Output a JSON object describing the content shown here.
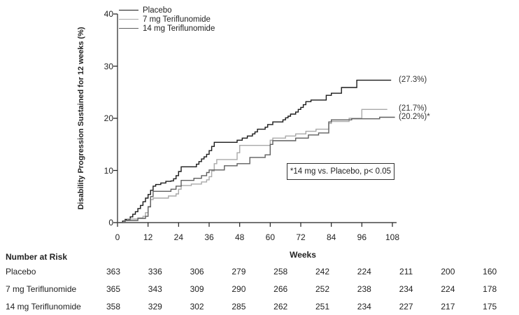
{
  "chart_data": {
    "type": "line",
    "subtype": "kaplan-meier-step",
    "title": "",
    "xlabel": "Weeks",
    "ylabel": "Disability Progression Sustained for 12 weeks (%)",
    "xlim": [
      0,
      108
    ],
    "ylim": [
      0,
      40
    ],
    "x_ticks": [
      0,
      12,
      24,
      36,
      48,
      60,
      72,
      84,
      96,
      108
    ],
    "y_ticks": [
      0,
      10,
      20,
      30,
      40
    ],
    "grid": false,
    "legend_position": "top-left-inside",
    "axis_color": "#222222",
    "annotation_box": "*14 mg vs. Placebo, p< 0.05",
    "series": [
      {
        "name": "Placebo",
        "color": "#1a1a1a",
        "final_label": "(27.3%)",
        "final_value": 27.3,
        "end_week": 107.5,
        "points": [
          [
            0,
            0
          ],
          [
            2,
            0.3
          ],
          [
            3,
            0.6
          ],
          [
            5,
            1.1
          ],
          [
            6,
            1.6
          ],
          [
            7,
            2.1
          ],
          [
            8,
            2.7
          ],
          [
            9,
            3.3
          ],
          [
            10,
            4.0
          ],
          [
            11,
            4.7
          ],
          [
            12,
            5.4
          ],
          [
            13,
            6.2
          ],
          [
            14,
            7.0
          ],
          [
            15,
            7.3
          ],
          [
            17,
            7.6
          ],
          [
            19,
            7.9
          ],
          [
            21,
            8.0
          ],
          [
            22,
            8.4
          ],
          [
            23,
            9.0
          ],
          [
            24,
            9.8
          ],
          [
            25,
            10.7
          ],
          [
            31,
            11.2
          ],
          [
            32,
            11.7
          ],
          [
            33,
            12.2
          ],
          [
            34,
            12.6
          ],
          [
            35,
            13.1
          ],
          [
            36,
            13.8
          ],
          [
            37,
            14.6
          ],
          [
            38,
            15.4
          ],
          [
            47,
            15.8
          ],
          [
            49,
            16.2
          ],
          [
            51,
            16.6
          ],
          [
            53,
            17.0
          ],
          [
            54,
            17.4
          ],
          [
            55,
            17.9
          ],
          [
            58,
            18.3
          ],
          [
            59,
            18.8
          ],
          [
            61,
            19.3
          ],
          [
            65,
            19.7
          ],
          [
            66,
            20.1
          ],
          [
            67,
            20.4
          ],
          [
            68,
            20.8
          ],
          [
            70,
            21.2
          ],
          [
            71,
            21.7
          ],
          [
            72,
            22.1
          ],
          [
            73,
            22.6
          ],
          [
            74,
            23.2
          ],
          [
            76,
            23.5
          ],
          [
            82,
            24.4
          ],
          [
            84,
            24.8
          ],
          [
            88,
            25.9
          ],
          [
            94,
            27.3
          ]
        ]
      },
      {
        "name": "7 mg Teriflunomide",
        "color": "#a9a9a9",
        "final_label": "(21.7%)",
        "final_value": 21.7,
        "end_week": 106,
        "points": [
          [
            0,
            0
          ],
          [
            3,
            0.4
          ],
          [
            4,
            0.7
          ],
          [
            8,
            0.9
          ],
          [
            10,
            1.2
          ],
          [
            11,
            1.9
          ],
          [
            12,
            3.1
          ],
          [
            13,
            4.4
          ],
          [
            14,
            4.7
          ],
          [
            20,
            5.1
          ],
          [
            23,
            5.5
          ],
          [
            24,
            6.4
          ],
          [
            25,
            7.1
          ],
          [
            29,
            7.4
          ],
          [
            33,
            7.8
          ],
          [
            35,
            8.2
          ],
          [
            36,
            8.8
          ],
          [
            37,
            9.9
          ],
          [
            38,
            11.3
          ],
          [
            39,
            12.1
          ],
          [
            47,
            13.4
          ],
          [
            48,
            14.8
          ],
          [
            60,
            15.8
          ],
          [
            61,
            16.2
          ],
          [
            66,
            16.6
          ],
          [
            70,
            17.0
          ],
          [
            74,
            17.5
          ],
          [
            78,
            17.9
          ],
          [
            83,
            19.0
          ],
          [
            84,
            19.4
          ],
          [
            91,
            20.0
          ],
          [
            96,
            21.7
          ]
        ]
      },
      {
        "name": "14 mg Teriflunomide",
        "color": "#5f5f5f",
        "final_label": "(20.2%)*",
        "final_value": 20.2,
        "end_week": 109,
        "points": [
          [
            0,
            0
          ],
          [
            3,
            0.4
          ],
          [
            8,
            0.8
          ],
          [
            11,
            1.2
          ],
          [
            12,
            3.0
          ],
          [
            13,
            5.0
          ],
          [
            14,
            6.0
          ],
          [
            21,
            6.4
          ],
          [
            23,
            7.0
          ],
          [
            25,
            8.1
          ],
          [
            30,
            8.5
          ],
          [
            33,
            9.0
          ],
          [
            35,
            9.6
          ],
          [
            36,
            10.1
          ],
          [
            42,
            10.9
          ],
          [
            47,
            11.3
          ],
          [
            52,
            12.5
          ],
          [
            58,
            13.0
          ],
          [
            60,
            15.0
          ],
          [
            61,
            15.7
          ],
          [
            70,
            16.2
          ],
          [
            75,
            16.8
          ],
          [
            79,
            17.2
          ],
          [
            83,
            19.3
          ],
          [
            84,
            19.7
          ],
          [
            92,
            19.9
          ],
          [
            103,
            20.2
          ]
        ]
      }
    ]
  },
  "risk_table": {
    "title": "Number at Risk",
    "rows": [
      {
        "label": "Placebo",
        "values": [
          363,
          336,
          306,
          279,
          258,
          242,
          224,
          211,
          200,
          160
        ]
      },
      {
        "label": "7 mg Teriflunomide",
        "values": [
          365,
          343,
          309,
          290,
          266,
          252,
          238,
          234,
          224,
          178
        ]
      },
      {
        "label": "14 mg Teriflunomide",
        "values": [
          358,
          329,
          302,
          285,
          262,
          251,
          234,
          227,
          217,
          175
        ]
      }
    ]
  }
}
